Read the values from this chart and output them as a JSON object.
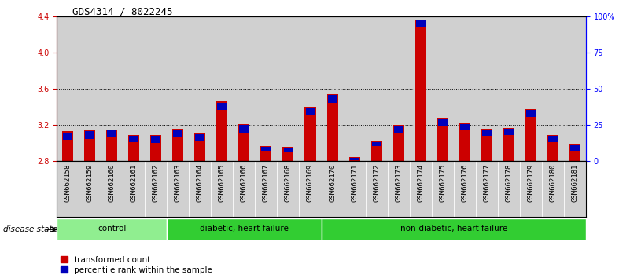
{
  "title": "GDS4314 / 8022245",
  "samples": [
    "GSM662158",
    "GSM662159",
    "GSM662160",
    "GSM662161",
    "GSM662162",
    "GSM662163",
    "GSM662164",
    "GSM662165",
    "GSM662166",
    "GSM662167",
    "GSM662168",
    "GSM662169",
    "GSM662170",
    "GSM662171",
    "GSM662172",
    "GSM662173",
    "GSM662174",
    "GSM662175",
    "GSM662176",
    "GSM662177",
    "GSM662178",
    "GSM662179",
    "GSM662180",
    "GSM662181"
  ],
  "red_values": [
    3.13,
    3.14,
    3.15,
    3.09,
    3.09,
    3.16,
    3.12,
    3.46,
    3.21,
    2.97,
    2.96,
    3.4,
    3.54,
    2.85,
    3.02,
    3.2,
    4.37,
    3.28,
    3.22,
    3.16,
    3.17,
    3.38,
    3.09,
    2.99
  ],
  "blue_values": [
    0.08,
    0.08,
    0.08,
    0.07,
    0.08,
    0.08,
    0.08,
    0.08,
    0.08,
    0.04,
    0.04,
    0.08,
    0.08,
    0.03,
    0.04,
    0.07,
    0.08,
    0.08,
    0.07,
    0.07,
    0.07,
    0.08,
    0.07,
    0.06
  ],
  "ylim_left": [
    2.8,
    4.4
  ],
  "ylim_right": [
    0,
    100
  ],
  "y_ticks_left": [
    2.8,
    3.2,
    3.6,
    4.0,
    4.4
  ],
  "y_ticks_right": [
    0,
    25,
    50,
    75,
    100
  ],
  "y_ticks_right_labels": [
    "0",
    "25",
    "50",
    "75",
    "100%"
  ],
  "red_color": "#CC0000",
  "blue_color": "#0000BB",
  "bar_bg_color": "#D0D0D0",
  "grid_color": "black",
  "title_fontsize": 9,
  "tick_fontsize": 7,
  "label_fontsize": 6.5,
  "legend_red": "transformed count",
  "legend_blue": "percentile rank within the sample",
  "disease_state_label": "disease state",
  "baseline": 2.8,
  "group_colors": [
    "#90EE90",
    "#32CD32",
    "#32CD32"
  ],
  "group_labels": [
    "control",
    "diabetic, heart failure",
    "non-diabetic, heart failure"
  ],
  "group_starts": [
    0,
    5,
    12
  ],
  "group_ends": [
    5,
    12,
    24
  ]
}
